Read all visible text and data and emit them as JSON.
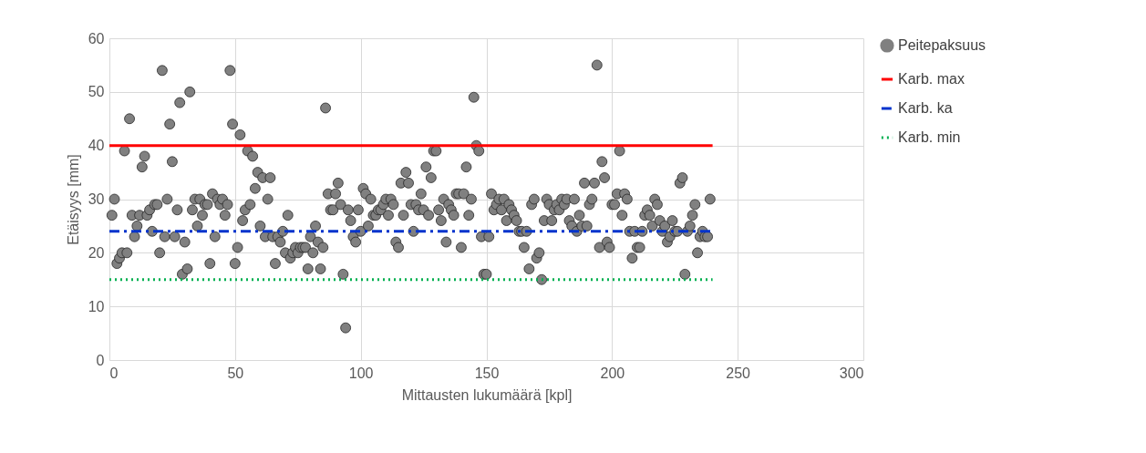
{
  "chart_data": {
    "type": "scatter",
    "xlabel": "Mittausten lukumäärä [kpl]",
    "ylabel": "Etäisyys [mm]",
    "xlim": [
      0,
      300
    ],
    "xticks": [
      0,
      50,
      100,
      150,
      200,
      250,
      300
    ],
    "ylim": [
      0,
      60
    ],
    "yticks": [
      0,
      10,
      20,
      30,
      40,
      50,
      60
    ],
    "grid": true,
    "legend": "right",
    "series": [
      {
        "name": "Peitepaksuus",
        "marker": "circle",
        "color": "#808080",
        "x": [
          1,
          2,
          3,
          4,
          5,
          6,
          7,
          8,
          9,
          10,
          11,
          12,
          13,
          14,
          15,
          16,
          17,
          18,
          19,
          20,
          21,
          22,
          23,
          24,
          25,
          26,
          27,
          28,
          29,
          30,
          31,
          32,
          33,
          34,
          35,
          36,
          37,
          38,
          39,
          40,
          41,
          42,
          43,
          44,
          45,
          46,
          47,
          48,
          49,
          50,
          51,
          52,
          53,
          54,
          55,
          56,
          57,
          58,
          59,
          60,
          61,
          62,
          63,
          64,
          65,
          66,
          67,
          68,
          69,
          70,
          71,
          72,
          73,
          74,
          75,
          76,
          77,
          78,
          79,
          80,
          81,
          82,
          83,
          84,
          85,
          86,
          87,
          88,
          89,
          90,
          91,
          92,
          93,
          94,
          95,
          96,
          97,
          98,
          99,
          100,
          101,
          102,
          103,
          104,
          105,
          106,
          107,
          108,
          109,
          110,
          111,
          112,
          113,
          114,
          115,
          116,
          117,
          118,
          119,
          120,
          121,
          122,
          123,
          124,
          125,
          126,
          127,
          128,
          129,
          130,
          131,
          132,
          133,
          134,
          135,
          136,
          137,
          138,
          139,
          140,
          141,
          142,
          143,
          144,
          145,
          146,
          147,
          148,
          149,
          150,
          151,
          152,
          153,
          154,
          155,
          156,
          157,
          158,
          159,
          160,
          161,
          162,
          163,
          164,
          165,
          166,
          167,
          168,
          169,
          170,
          171,
          172,
          173,
          174,
          175,
          176,
          177,
          178,
          179,
          180,
          181,
          182,
          183,
          184,
          185,
          186,
          187,
          188,
          189,
          190,
          191,
          192,
          193,
          194,
          195,
          196,
          197,
          198,
          199,
          200,
          201,
          202,
          203,
          204,
          205,
          206,
          207,
          208,
          209,
          210,
          211,
          212,
          213,
          214,
          215,
          216,
          217,
          218,
          219,
          220,
          221,
          222,
          223,
          224,
          225,
          226,
          227,
          228,
          229,
          230,
          231,
          232,
          233,
          234,
          235,
          236,
          237,
          238,
          239
        ],
        "values": [
          27,
          30,
          18,
          19,
          20,
          39,
          20,
          45,
          27,
          23,
          25,
          27,
          36,
          38,
          27,
          28,
          24,
          29,
          29,
          20,
          54,
          23,
          30,
          44,
          37,
          23,
          28,
          48,
          16,
          22,
          17,
          50,
          28,
          30,
          25,
          30,
          27,
          29,
          29,
          18,
          31,
          23,
          30,
          29,
          30,
          27,
          29,
          54,
          44,
          18,
          21,
          42,
          26,
          28,
          39,
          29,
          38,
          32,
          35,
          25,
          34,
          23,
          30,
          34,
          23,
          18,
          23,
          22,
          24,
          20,
          27,
          19,
          20,
          21,
          20,
          21,
          21,
          21,
          17,
          23,
          20,
          25,
          22,
          17,
          21,
          47,
          31,
          28,
          28,
          31,
          33,
          29,
          16,
          6,
          28,
          26,
          23,
          22,
          28,
          24,
          32,
          31,
          25,
          30,
          27,
          27,
          28,
          28,
          29,
          30,
          27,
          30,
          29,
          22,
          21,
          33,
          27,
          35,
          33,
          29,
          24,
          29,
          28,
          31,
          28,
          36,
          27,
          34,
          39,
          39,
          28,
          26,
          30,
          22,
          29,
          28,
          27,
          31,
          31,
          21,
          31,
          36,
          27,
          30,
          49,
          40,
          39,
          23,
          16,
          16,
          23,
          31,
          28,
          29,
          30,
          28,
          30,
          26,
          29,
          28,
          27,
          26,
          24,
          24,
          21,
          24,
          17,
          29,
          30,
          19,
          20,
          15,
          26,
          30,
          29,
          26,
          28,
          29,
          28,
          30,
          29,
          30,
          26,
          25,
          30,
          24,
          27,
          25,
          33,
          25,
          29,
          30,
          33,
          55,
          21,
          37,
          34,
          22,
          21,
          29,
          29,
          31,
          39,
          27,
          31,
          30,
          24,
          19,
          24,
          21,
          21,
          24,
          27,
          28,
          27,
          25,
          30,
          29,
          26,
          24,
          25,
          22,
          23,
          26,
          24,
          24,
          33,
          34,
          16,
          24,
          25,
          27,
          29,
          20,
          23,
          24,
          23,
          23,
          30
        ]
      },
      {
        "name": "Karb. max",
        "type": "line",
        "color": "#ff0000",
        "line_style": "solid",
        "x": [
          0,
          240
        ],
        "values": [
          40,
          40
        ]
      },
      {
        "name": "Karb. ka",
        "type": "line",
        "color": "#0033cc",
        "line_style": "dashed",
        "x": [
          0,
          240
        ],
        "values": [
          24,
          24
        ]
      },
      {
        "name": "Karb. min",
        "type": "line",
        "color": "#00b050",
        "line_style": "dotted",
        "x": [
          0,
          240
        ],
        "values": [
          15,
          15
        ]
      }
    ]
  }
}
